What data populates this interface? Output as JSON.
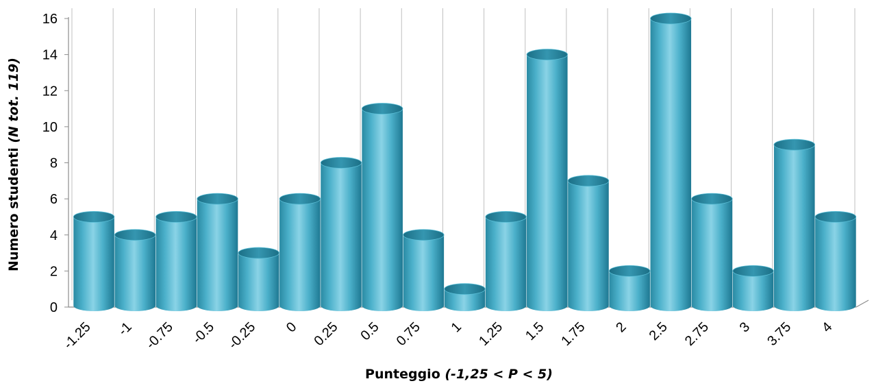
{
  "chart_data": {
    "type": "bar",
    "style": "3d-cylinder",
    "categories": [
      "-1.25",
      "-1",
      "-0.75",
      "-0.5",
      "-0.25",
      "0",
      "0.25",
      "0.5",
      "0.75",
      "1",
      "1.25",
      "1.5",
      "1.75",
      "2",
      "2.5",
      "2.75",
      "3",
      "3.75",
      "4"
    ],
    "values": [
      5,
      4,
      5,
      6,
      3,
      6,
      8,
      11,
      4,
      1,
      5,
      14,
      7,
      2,
      16,
      6,
      2,
      9,
      5
    ],
    "y_ticks": [
      "0",
      "2",
      "4",
      "6",
      "8",
      "10",
      "12",
      "14",
      "16"
    ],
    "ylim": [
      0,
      16
    ],
    "xlabel_main": "Punteggio ",
    "xlabel_italic": "(-1,25 < P < 5)",
    "ylabel_main": "Numero studenti ",
    "ylabel_italic": "(N tot. 119)",
    "grid": "vertical",
    "colors": {
      "bar": "#4bacc6",
      "bar_dark": "#1f7f97",
      "bar_light": "#b5e3ef",
      "grid": "#bfbfbf",
      "axis": "#8c8c8c"
    }
  }
}
